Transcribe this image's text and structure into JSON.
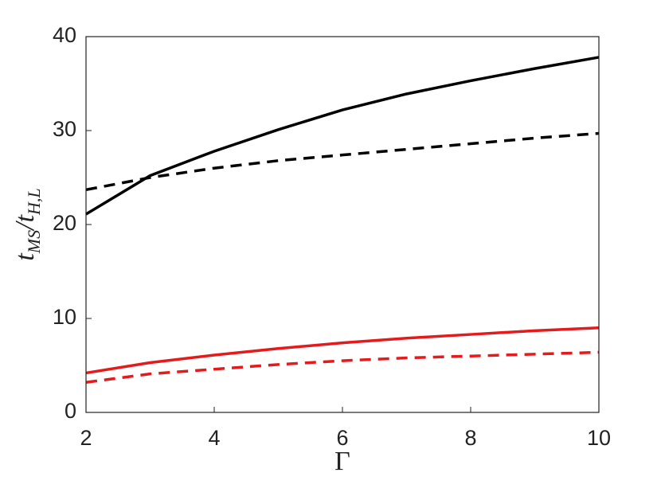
{
  "chart_data": {
    "type": "line",
    "xlabel": "Γ",
    "ylabel": [
      "t",
      "MS",
      "/t",
      "H,L"
    ],
    "x": [
      2,
      3,
      4,
      5,
      6,
      7,
      8,
      9,
      10
    ],
    "series": [
      {
        "color": "#000000",
        "dashed": false,
        "values": [
          21.1,
          25.2,
          27.8,
          30.1,
          32.2,
          33.9,
          35.3,
          36.6,
          37.8
        ]
      },
      {
        "color": "#000000",
        "dashed": true,
        "values": [
          23.7,
          25.0,
          26.0,
          26.8,
          27.4,
          28.0,
          28.6,
          29.2,
          29.7
        ]
      },
      {
        "color": "#e41a1c",
        "dashed": false,
        "values": [
          4.2,
          5.3,
          6.1,
          6.8,
          7.4,
          7.9,
          8.3,
          8.7,
          9.0
        ]
      },
      {
        "color": "#e41a1c",
        "dashed": true,
        "values": [
          3.2,
          4.1,
          4.6,
          5.1,
          5.5,
          5.8,
          6.0,
          6.2,
          6.4
        ]
      }
    ],
    "xlim": [
      2,
      10
    ],
    "xticks": [
      2,
      4,
      6,
      8,
      10
    ],
    "ylim": [
      0,
      40
    ],
    "yticks": [
      0,
      10,
      20,
      30,
      40
    ],
    "grid": false
  }
}
